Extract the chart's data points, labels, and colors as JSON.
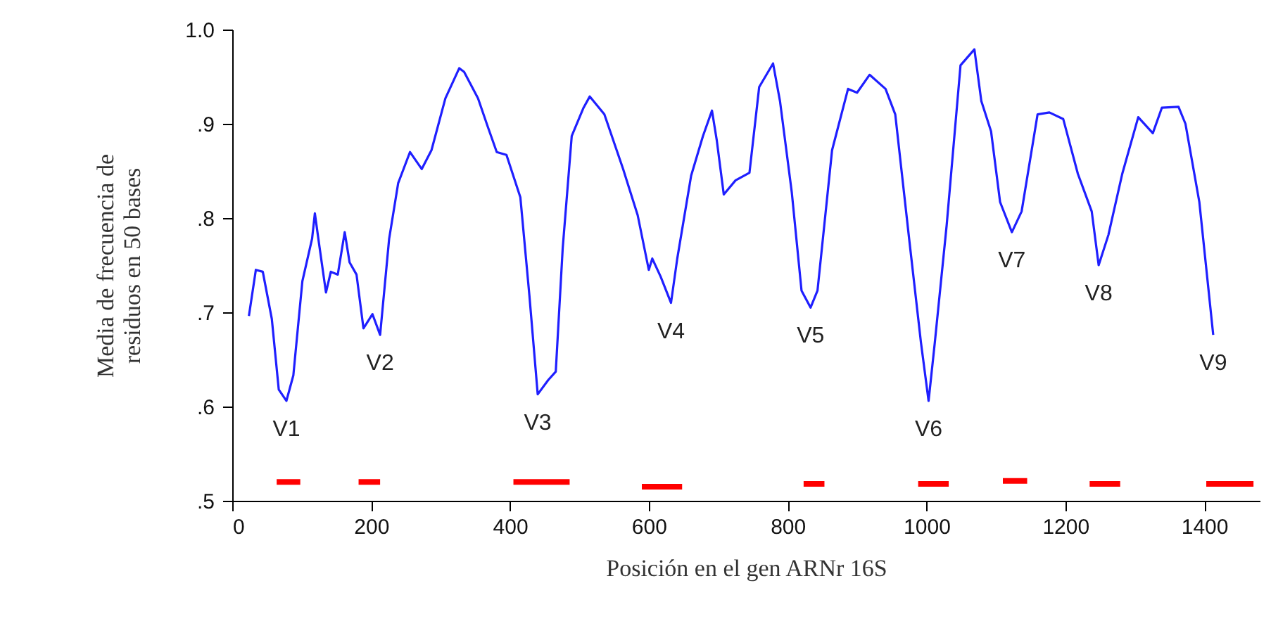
{
  "chart_data": {
    "type": "line",
    "xlabel": "Posición en el gen ARNr 16S",
    "ylabel": "Media de frecuencia de residuos en 50 bases",
    "xlim": [
      0,
      1480
    ],
    "ylim": [
      0.5,
      1.0
    ],
    "xticks": [
      0,
      200,
      400,
      600,
      800,
      1000,
      1200,
      1400
    ],
    "yticks": [
      {
        "value": 0.5,
        "label": ".5"
      },
      {
        "value": 0.6,
        "label": ".6"
      },
      {
        "value": 0.7,
        "label": ".7"
      },
      {
        "value": 0.8,
        "label": ".8"
      },
      {
        "value": 0.9,
        "label": ".9"
      },
      {
        "value": 1.0,
        "label": "1.0"
      }
    ],
    "grid": false,
    "marker": "none",
    "line_style": "solid",
    "annotations": [
      {
        "text": "V1",
        "x": 78,
        "y": 0.606
      },
      {
        "text": "V2",
        "x": 213,
        "y": 0.676
      },
      {
        "text": "V3",
        "x": 440,
        "y": 0.613
      },
      {
        "text": "V4",
        "x": 632,
        "y": 0.71
      },
      {
        "text": "V5",
        "x": 833,
        "y": 0.705
      },
      {
        "text": "V6",
        "x": 1003,
        "y": 0.606
      },
      {
        "text": "V7",
        "x": 1123,
        "y": 0.785
      },
      {
        "text": "V8",
        "x": 1248,
        "y": 0.75
      },
      {
        "text": "V9",
        "x": 1413,
        "y": 0.676
      }
    ],
    "series": [
      {
        "color": "#1f1fff",
        "x": [
          24,
          34,
          44,
          57,
          67,
          78,
          88,
          101,
          115,
          119,
          125,
          135,
          142,
          152,
          162,
          169,
          179,
          189,
          202,
          213,
          226,
          239,
          256,
          273,
          287,
          307,
          327,
          334,
          354,
          368,
          381,
          395,
          415,
          428,
          440,
          455,
          466,
          476,
          489,
          506,
          515,
          536,
          563,
          584,
          600,
          605,
          617,
          632,
          641,
          661,
          678,
          691,
          698,
          708,
          725,
          745,
          759,
          779,
          789,
          806,
          820,
          833,
          843,
          864,
          887,
          900,
          918,
          941,
          955,
          975,
          992,
          1003,
          1012,
          1029,
          1049,
          1069,
          1079,
          1093,
          1106,
          1123,
          1137,
          1160,
          1177,
          1197,
          1218,
          1238,
          1248,
          1262,
          1282,
          1305,
          1326,
          1339,
          1363,
          1373,
          1393,
          1413
        ],
        "values": [
          0.696,
          0.745,
          0.743,
          0.693,
          0.618,
          0.606,
          0.633,
          0.733,
          0.778,
          0.805,
          0.773,
          0.721,
          0.743,
          0.74,
          0.785,
          0.753,
          0.74,
          0.683,
          0.698,
          0.676,
          0.778,
          0.837,
          0.87,
          0.852,
          0.872,
          0.927,
          0.959,
          0.955,
          0.927,
          0.897,
          0.87,
          0.867,
          0.822,
          0.718,
          0.613,
          0.628,
          0.637,
          0.768,
          0.887,
          0.917,
          0.929,
          0.91,
          0.852,
          0.803,
          0.745,
          0.757,
          0.738,
          0.71,
          0.757,
          0.845,
          0.887,
          0.914,
          0.882,
          0.825,
          0.84,
          0.848,
          0.939,
          0.964,
          0.924,
          0.827,
          0.723,
          0.705,
          0.723,
          0.872,
          0.937,
          0.933,
          0.952,
          0.937,
          0.91,
          0.778,
          0.668,
          0.606,
          0.668,
          0.792,
          0.962,
          0.979,
          0.924,
          0.892,
          0.817,
          0.785,
          0.807,
          0.91,
          0.912,
          0.905,
          0.847,
          0.807,
          0.75,
          0.782,
          0.847,
          0.907,
          0.89,
          0.917,
          0.918,
          0.9,
          0.817,
          0.676
        ]
      },
      {
        "color": "#ff0000",
        "x": [
          64,
          98,
          99,
          182,
          213,
          214,
          405,
          486,
          487,
          590,
          648,
          649,
          823,
          853,
          854,
          988,
          1032,
          1033,
          1110,
          1145,
          1146,
          1235,
          1279,
          1280,
          1403,
          1471
        ],
        "values": [
          0.52,
          0.52,
          null,
          0.52,
          0.52,
          null,
          0.52,
          0.52,
          null,
          0.515,
          0.515,
          null,
          0.518,
          0.518,
          null,
          0.518,
          0.518,
          null,
          0.521,
          0.521,
          null,
          0.518,
          0.518,
          null,
          0.518,
          0.518
        ]
      }
    ]
  }
}
